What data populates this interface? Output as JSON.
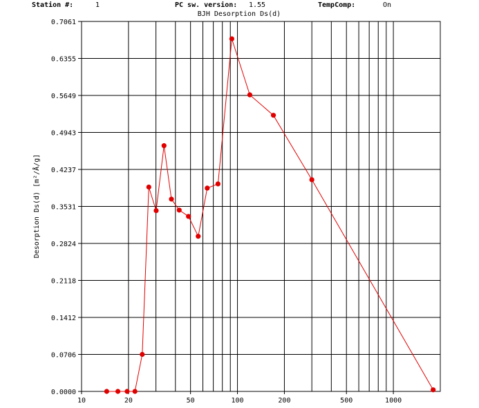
{
  "header": {
    "station_label": "Station #:",
    "station_value": "1",
    "version_label": "PC sw. version:",
    "version_value": "1.55",
    "tempcomp_label": "TempComp:",
    "tempcomp_value": "On"
  },
  "chart_data": {
    "type": "line",
    "title": "BJH Desorption Ds(d)",
    "ylabel": "Desorption Ds(d) [m²/Å/g]",
    "xlabel": "",
    "x_scale": "log",
    "xlim": [
      10,
      2000
    ],
    "ylim": [
      0,
      0.7061
    ],
    "grid": true,
    "y_ticks": [
      "0.0000",
      "0.0706",
      "0.1412",
      "0.2118",
      "0.2824",
      "0.3531",
      "0.4237",
      "0.4943",
      "0.5649",
      "0.6355",
      "0.7061"
    ],
    "x_tick_labels": [
      {
        "value": 10,
        "label": "10"
      },
      {
        "value": 20,
        "label": "20"
      },
      {
        "value": 50,
        "label": "50"
      },
      {
        "value": 100,
        "label": "100"
      },
      {
        "value": 200,
        "label": "200"
      },
      {
        "value": 500,
        "label": "500"
      },
      {
        "value": 1000,
        "label": "1000"
      }
    ],
    "x_gridlines": [
      20,
      30,
      40,
      50,
      60,
      70,
      80,
      90,
      100,
      200,
      300,
      400,
      500,
      600,
      700,
      800,
      900,
      1000
    ],
    "color": "#e00000",
    "series": [
      {
        "x": [
          14.5,
          17.1,
          19.6,
          22.0,
          24.5,
          27.0,
          30.1,
          33.8,
          37.7,
          42.3,
          48.5,
          56.0,
          64.0,
          75.0,
          92.0,
          120,
          170,
          300,
          1800
        ],
        "y": [
          0.0,
          0.0,
          0.0,
          0.0,
          0.0706,
          0.39,
          0.345,
          0.469,
          0.367,
          0.346,
          0.334,
          0.296,
          0.388,
          0.396,
          0.673,
          0.566,
          0.527,
          0.404,
          0.003
        ]
      }
    ]
  }
}
